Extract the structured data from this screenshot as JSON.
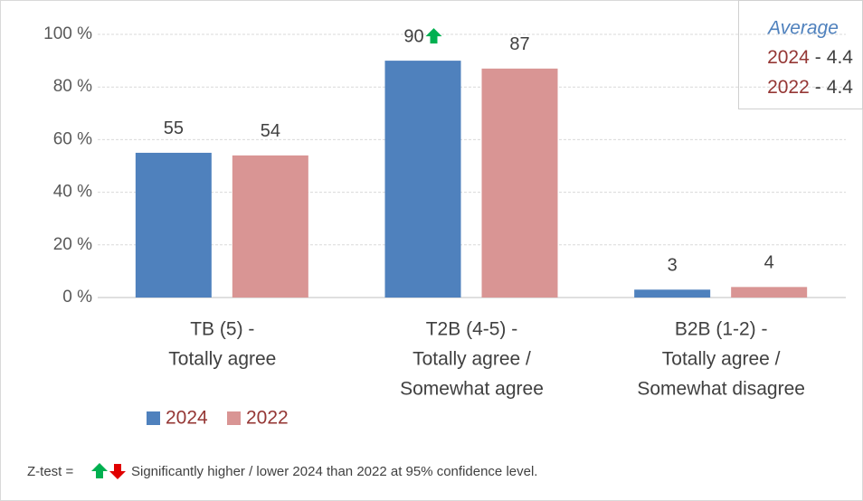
{
  "chart_data": {
    "type": "bar",
    "categories": [
      [
        "TB (5) -",
        "Totally agree"
      ],
      [
        "T2B (4-5) -",
        "Totally agree /",
        "Somewhat agree"
      ],
      [
        "B2B (1-2) -",
        "Totally agree /",
        "Somewhat disagree"
      ]
    ],
    "series": [
      {
        "name": "2024",
        "color": "#4f81bd",
        "values": [
          55,
          90,
          3
        ],
        "significance": [
          null,
          "up",
          null
        ]
      },
      {
        "name": "2022",
        "color": "#d99594",
        "values": [
          54,
          87,
          4
        ]
      }
    ],
    "ylim": [
      0,
      100
    ],
    "yticks": [
      {
        "value": 0,
        "label": "0 %"
      },
      {
        "value": 20,
        "label": "20 %"
      },
      {
        "value": 40,
        "label": "40 %"
      },
      {
        "value": 60,
        "label": "60 %"
      },
      {
        "value": 80,
        "label": "80 %"
      },
      {
        "value": 100,
        "label": "100 %"
      }
    ],
    "grid": true,
    "legend": "bottom-left",
    "average_box": {
      "title": "Average",
      "items": [
        {
          "label": "2024",
          "separator": "-",
          "value": 4.4
        },
        {
          "label": "2022",
          "separator": "-",
          "value": 4.4
        }
      ]
    },
    "footnote": {
      "prefix": "Z-test =",
      "text": "Significantly higher / lower 2024 than 2022 at 95% confidence level."
    }
  }
}
